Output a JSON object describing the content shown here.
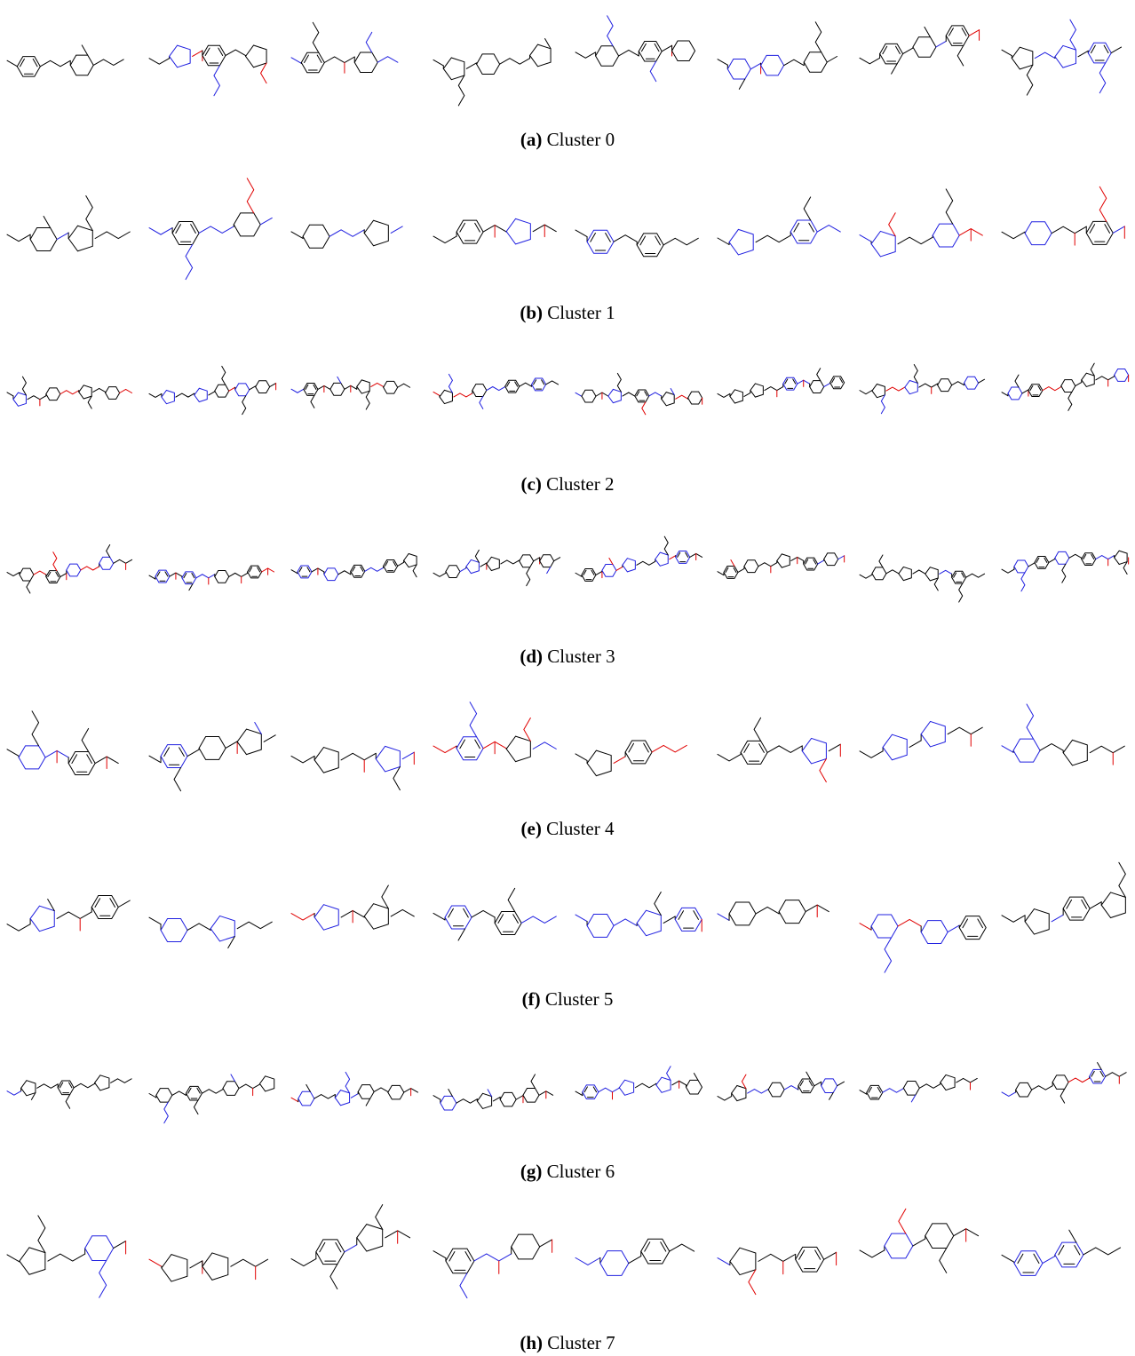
{
  "figure": {
    "captions": [
      {
        "label": "(a)",
        "text": "Cluster 0"
      },
      {
        "label": "(b)",
        "text": "Cluster 1"
      },
      {
        "label": "(c)",
        "text": "Cluster 2"
      },
      {
        "label": "(d)",
        "text": "Cluster 3"
      },
      {
        "label": "(e)",
        "text": "Cluster 4"
      },
      {
        "label": "(f)",
        "text": "Cluster 5"
      },
      {
        "label": "(g)",
        "text": "Cluster 6"
      },
      {
        "label": "(h)",
        "text": "Cluster 7"
      }
    ]
  }
}
